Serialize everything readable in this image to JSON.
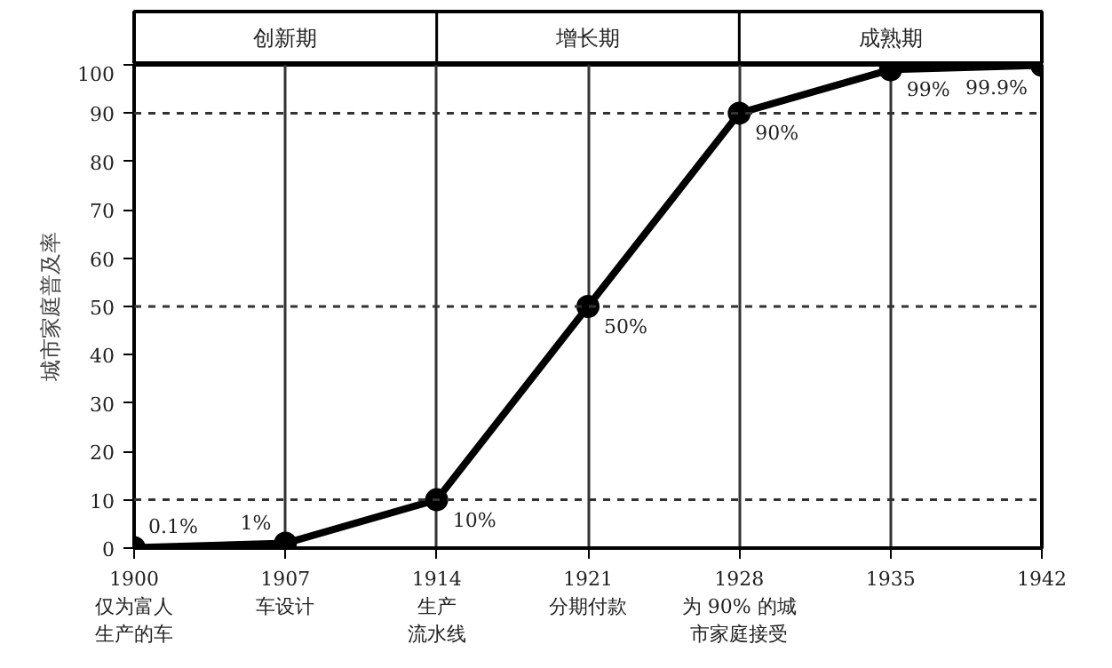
{
  "chart_data": {
    "type": "line",
    "ylabel": "城市家庭普及率",
    "x": [
      1900,
      1907,
      1914,
      1921,
      1928,
      1935,
      1942
    ],
    "series": [
      {
        "color": "#000000",
        "values": [
          0.1,
          1,
          10,
          50,
          90,
          99,
          99.9
        ],
        "value_labels": [
          "0.1%",
          "1%",
          "10%",
          "50%",
          "90%",
          "99%",
          "99.9%"
        ]
      }
    ],
    "xlim": [
      1900,
      1942
    ],
    "xticks": [
      {
        "value": 1900,
        "label": "1900\n仅为富人生产的车"
      },
      {
        "value": 1907,
        "label": "1907\n车设计"
      },
      {
        "value": 1914,
        "label": "1914\n生产流水线"
      },
      {
        "value": 1921,
        "label": "1921\n分期付款"
      },
      {
        "value": 1928,
        "label": "1928\n为 90% 的城市家庭接受"
      },
      {
        "value": 1935,
        "label": "1935"
      },
      {
        "value": 1942,
        "label": "1942"
      }
    ],
    "ylim": [
      0,
      100
    ],
    "yticks": [
      0,
      10,
      20,
      30,
      40,
      50,
      60,
      70,
      80,
      90,
      100
    ],
    "annotations": [
      "创新期",
      "增长期",
      "成熟期"
    ],
    "grid": "x",
    "marker": "circle",
    "line_style": "solid",
    "ref_lines": [
      {
        "axis": "y",
        "value": 10,
        "line_style": "dashed"
      },
      {
        "axis": "y",
        "value": 50,
        "line_style": "dashed"
      },
      {
        "axis": "y",
        "value": 90,
        "line_style": "dashed"
      }
    ]
  }
}
